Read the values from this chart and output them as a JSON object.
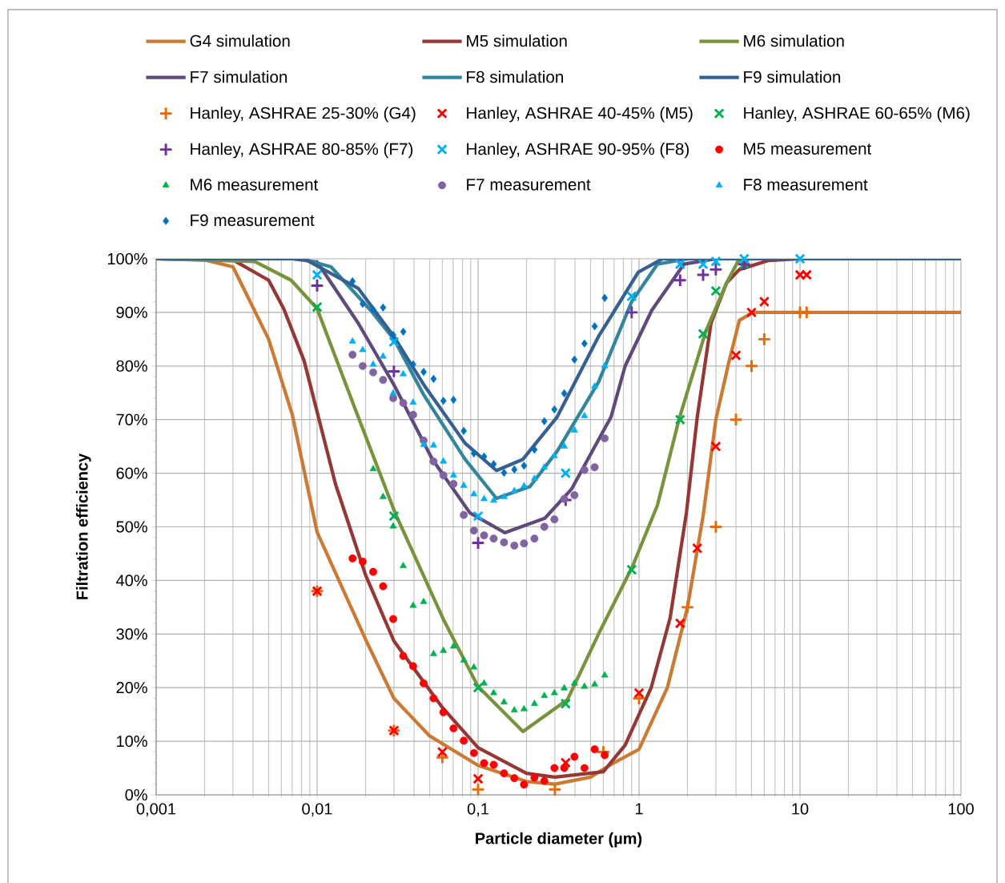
{
  "chart_data": {
    "type": "line",
    "xlabel": "Particle diameter (µm)",
    "ylabel": "Filtration efficiency",
    "log": "x",
    "grid": true,
    "legend": "top",
    "xlim": [
      0.001,
      100
    ],
    "ylim": [
      0,
      100
    ],
    "xticks": [
      {
        "value": 0.001,
        "label": "0,001"
      },
      {
        "value": 0.01,
        "label": "0,01"
      },
      {
        "value": 0.1,
        "label": "0,1"
      },
      1,
      10,
      100
    ],
    "yticks": [
      {
        "value": 0,
        "label": "0%"
      },
      {
        "value": 10,
        "label": "10%"
      },
      {
        "value": 20,
        "label": "20%"
      },
      {
        "value": 30,
        "label": "30%"
      },
      {
        "value": 40,
        "label": "40%"
      },
      {
        "value": 50,
        "label": "50%"
      },
      {
        "value": 60,
        "label": "60%"
      },
      {
        "value": 70,
        "label": "70%"
      },
      {
        "value": 80,
        "label": "80%"
      },
      {
        "value": 90,
        "label": "90%"
      },
      {
        "value": 100,
        "label": "100%"
      }
    ],
    "series": [
      {
        "name": "G4 simulation",
        "type": "line",
        "color": "#cc7a33",
        "x": [
          0.001,
          0.002,
          0.003,
          0.005,
          0.007,
          0.01,
          0.02,
          0.03,
          0.05,
          0.1,
          0.2,
          0.3,
          0.5,
          0.7,
          1,
          1.5,
          2,
          2.5,
          3,
          3.6,
          4.2,
          5.1,
          100
        ],
        "values": [
          100,
          99.8,
          98.5,
          85,
          71,
          49,
          29,
          18,
          11,
          5.5,
          2.5,
          2,
          3.3,
          6,
          8.5,
          20,
          35,
          52,
          70,
          80.5,
          88.5,
          90,
          90
        ]
      },
      {
        "name": "M5 simulation",
        "type": "line",
        "color": "#953735",
        "x": [
          0.001,
          0.003,
          0.005,
          0.0062,
          0.0083,
          0.013,
          0.02,
          0.03,
          0.06,
          0.1,
          0.2,
          0.3,
          0.6,
          0.82,
          1.19,
          1.56,
          1.97,
          2.3,
          2.8,
          3.5,
          4.2,
          6.4,
          10,
          100
        ],
        "values": [
          100,
          99.8,
          96,
          90.7,
          81,
          58,
          41,
          28.7,
          16.3,
          8.8,
          4,
          3.3,
          4.3,
          9.3,
          20,
          33,
          52.6,
          70.5,
          88,
          95.5,
          98,
          99.7,
          100,
          100
        ]
      },
      {
        "name": "M6 simulation",
        "type": "line",
        "color": "#77933c",
        "x": [
          0.001,
          0.0041,
          0.0069,
          0.01,
          0.018,
          0.0305,
          0.061,
          0.1,
          0.19,
          0.36,
          0.56,
          0.91,
          1.3,
          1.77,
          2.6,
          3.5,
          4.2,
          100
        ],
        "values": [
          100,
          99.5,
          96,
          90.7,
          70.5,
          52.6,
          32.7,
          20.2,
          11.8,
          17.8,
          30,
          42.6,
          54,
          70,
          86.5,
          95.5,
          100,
          100
        ]
      },
      {
        "name": "F7 simulation",
        "type": "line",
        "color": "#604a7b",
        "x": [
          0.001,
          0.007,
          0.01,
          0.018,
          0.03,
          0.052,
          0.089,
          0.147,
          0.26,
          0.38,
          0.67,
          0.82,
          1.2,
          1.9,
          3,
          100
        ],
        "values": [
          100,
          100,
          99.4,
          88,
          76.5,
          62.6,
          52.6,
          48.9,
          51.6,
          57,
          70.5,
          80,
          90.4,
          99,
          100,
          100
        ]
      },
      {
        "name": "F8 simulation",
        "type": "line",
        "color": "#31859c",
        "x": [
          0.001,
          0.008,
          0.0122,
          0.0215,
          0.03,
          0.046,
          0.083,
          0.13,
          0.21,
          0.31,
          0.56,
          0.9,
          1.3,
          2,
          100
        ],
        "values": [
          100,
          100,
          98.5,
          90.4,
          85,
          74.6,
          62.6,
          55.3,
          57.5,
          64.1,
          77,
          92,
          99,
          100,
          100
        ]
      },
      {
        "name": "F9 simulation",
        "type": "line",
        "color": "#376092",
        "x": [
          0.001,
          0.0083,
          0.018,
          0.03,
          0.046,
          0.083,
          0.13,
          0.19,
          0.31,
          0.56,
          0.99,
          1.4,
          100
        ],
        "values": [
          100,
          100,
          94.5,
          85.5,
          76.5,
          65.6,
          60.5,
          62.6,
          70.5,
          85.5,
          97.5,
          100,
          100
        ]
      },
      {
        "name": "Hanley, ASHRAE 25-30% (G4)",
        "type": "scatter",
        "marker": "plus",
        "color": "#e46c0a",
        "x": [
          0.01,
          0.03,
          0.06,
          0.1,
          0.3,
          0.6,
          1,
          2,
          3,
          4,
          5,
          6,
          10,
          11
        ],
        "values": [
          38,
          12,
          7,
          1,
          1,
          8,
          18,
          35,
          50,
          70,
          80,
          85,
          90,
          90
        ]
      },
      {
        "name": "Hanley, ASHRAE 40-45% (M5)",
        "type": "scatter",
        "marker": "cross",
        "color": "#ff0000",
        "x": [
          0.01,
          0.03,
          0.06,
          0.1,
          0.35,
          1,
          1.8,
          2.3,
          3,
          4,
          5,
          6,
          10,
          11
        ],
        "values": [
          38,
          12,
          8,
          3,
          6,
          19,
          32,
          46,
          65,
          82,
          90,
          92,
          97,
          97
        ]
      },
      {
        "name": "Hanley, ASHRAE 60-65% (M6)",
        "type": "scatter",
        "marker": "cross",
        "color": "#00b050",
        "x": [
          0.01,
          0.03,
          0.1,
          0.35,
          0.9,
          1.8,
          2.5,
          3,
          4.5
        ],
        "values": [
          91,
          52,
          20,
          17,
          42,
          70,
          86,
          94,
          99
        ]
      },
      {
        "name": "Hanley, ASHRAE 80-85% (F7)",
        "type": "scatter",
        "marker": "plus",
        "color": "#7030a0",
        "x": [
          0.01,
          0.03,
          0.1,
          0.35,
          0.9,
          1.8,
          2.5,
          3,
          4.5
        ],
        "values": [
          95,
          79,
          47,
          55,
          90,
          96,
          97,
          98,
          99
        ]
      },
      {
        "name": "Hanley, ASHRAE 90-95% (F8)",
        "type": "scatter",
        "marker": "cross",
        "color": "#00b0f0",
        "x": [
          0.01,
          0.03,
          0.1,
          0.35,
          0.9,
          1.8,
          2.5,
          3,
          4.5,
          10
        ],
        "values": [
          97,
          84.5,
          52,
          60,
          93,
          99,
          99,
          99.5,
          100,
          100
        ]
      },
      {
        "name": "M5 measurement",
        "type": "scatter",
        "marker": "circle",
        "color": "#ff0000",
        "x": [
          0.0166,
          0.0192,
          0.0223,
          0.0257,
          0.0297,
          0.0343,
          0.0395,
          0.0459,
          0.0529,
          0.0609,
          0.0704,
          0.0815,
          0.0942,
          0.109,
          0.125,
          0.145,
          0.168,
          0.193,
          0.224,
          0.258,
          0.298,
          0.343,
          0.397,
          0.458,
          0.53,
          0.612
        ],
        "values": [
          44.1,
          43.5,
          41.6,
          38.9,
          32.8,
          25.9,
          24.0,
          20.8,
          18.0,
          15.4,
          12.4,
          10.1,
          7.8,
          5.9,
          5.6,
          4.0,
          3.1,
          1.9,
          3.2,
          2.6,
          5.0,
          5.0,
          7.1,
          5.0,
          8.5,
          7.4
        ]
      },
      {
        "name": "M6 measurement",
        "type": "scatter",
        "marker": "triangle",
        "color": "#00b050",
        "x": [
          0.0223,
          0.0257,
          0.0297,
          0.0343,
          0.0395,
          0.0459,
          0.0529,
          0.0609,
          0.0704,
          0.0815,
          0.0942,
          0.109,
          0.125,
          0.145,
          0.168,
          0.193,
          0.224,
          0.258,
          0.298,
          0.343,
          0.397,
          0.458,
          0.53,
          0.612
        ],
        "values": [
          60.8,
          55.6,
          50.1,
          42.7,
          35.3,
          36.0,
          26.3,
          26.9,
          27.7,
          25.1,
          23.8,
          20.8,
          19.0,
          17.3,
          15.8,
          16.0,
          17.0,
          18.5,
          19.0,
          19.9,
          20.8,
          20.2,
          20.6,
          22.3
        ]
      },
      {
        "name": "F7 measurement",
        "type": "scatter",
        "marker": "circle",
        "color": "#8064a2",
        "x": [
          0.0166,
          0.0192,
          0.0223,
          0.0257,
          0.0297,
          0.0343,
          0.0395,
          0.0459,
          0.0529,
          0.0609,
          0.0704,
          0.0815,
          0.0942,
          0.109,
          0.125,
          0.145,
          0.168,
          0.193,
          0.224,
          0.258,
          0.298,
          0.343,
          0.397,
          0.458,
          0.53,
          0.612
        ],
        "values": [
          82.1,
          80.0,
          78.8,
          77.4,
          74.0,
          73.1,
          70.9,
          66.1,
          62.2,
          59.6,
          58.0,
          52.2,
          49.3,
          48.4,
          47.8,
          47.1,
          46.5,
          46.9,
          47.8,
          50.0,
          51.4,
          55.2,
          55.9,
          60.6,
          61.1,
          66.5
        ]
      },
      {
        "name": "F8 measurement",
        "type": "scatter",
        "marker": "triangle",
        "color": "#00b0f0",
        "x": [
          0.0166,
          0.0192,
          0.0223,
          0.0257,
          0.0297,
          0.0343,
          0.0395,
          0.0459,
          0.0529,
          0.0609,
          0.0704,
          0.0815,
          0.0942,
          0.109,
          0.125,
          0.145,
          0.168,
          0.193,
          0.224,
          0.258,
          0.298,
          0.343,
          0.397,
          0.458,
          0.53,
          0.612
        ],
        "values": [
          84.6,
          83.0,
          80.3,
          81.8,
          74.9,
          78.5,
          73.2,
          65.3,
          65.2,
          62.2,
          59.6,
          57.7,
          56.1,
          55.2,
          54.9,
          55.6,
          56.7,
          57.6,
          59.0,
          61.1,
          63.2,
          65.0,
          68.0,
          70.7,
          76.2,
          80.0
        ]
      },
      {
        "name": "F9 measurement",
        "type": "scatter",
        "marker": "diamond",
        "color": "#0070c0",
        "x": [
          0.0166,
          0.0192,
          0.0223,
          0.0257,
          0.0297,
          0.0343,
          0.0395,
          0.0459,
          0.0529,
          0.0609,
          0.0704,
          0.0815,
          0.0942,
          0.109,
          0.125,
          0.145,
          0.168,
          0.193,
          0.224,
          0.258,
          0.298,
          0.343,
          0.397,
          0.458,
          0.53,
          0.612
        ],
        "values": [
          95.8,
          91.6,
          90.5,
          90.9,
          85.8,
          86.4,
          80.3,
          78.9,
          77.6,
          73.5,
          73.7,
          67.9,
          63.7,
          63.1,
          61.7,
          60.1,
          60.7,
          61.4,
          64.4,
          69.7,
          71.9,
          74.9,
          81.2,
          84.2,
          87.4,
          92.7
        ]
      }
    ]
  }
}
